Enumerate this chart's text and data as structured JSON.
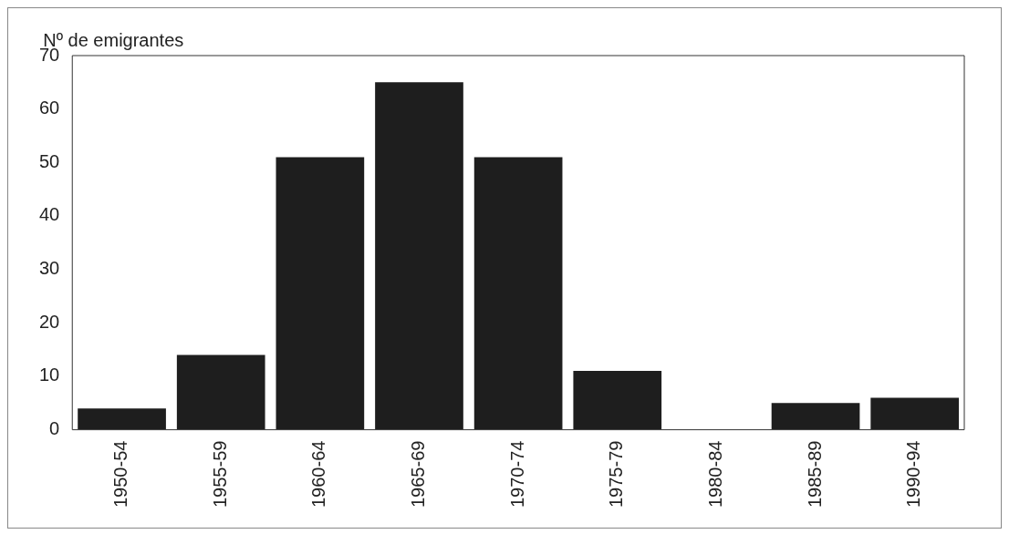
{
  "chart_data": {
    "type": "bar",
    "ylabel": "Nº de emigrantes",
    "categories": [
      "1950-54",
      "1955-59",
      "1960-64",
      "1965-69",
      "1970-74",
      "1975-79",
      "1980-84",
      "1985-89",
      "1990-94"
    ],
    "values": [
      4,
      14,
      51,
      65,
      51,
      11,
      0,
      5,
      6
    ],
    "color": "#1e1e1e",
    "ylim": [
      0,
      70
    ],
    "yticks": [
      0,
      10,
      20,
      30,
      40,
      50,
      60,
      70
    ],
    "grid": false,
    "legend": false
  }
}
